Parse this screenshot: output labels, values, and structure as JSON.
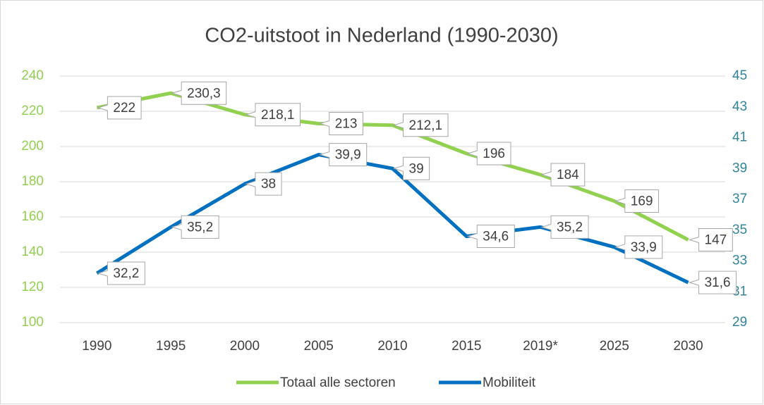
{
  "chart_data": {
    "type": "line",
    "title": "CO2-uitstoot in Nederland (1990-2030)",
    "categories": [
      "1990",
      "1995",
      "2000",
      "2005",
      "2010",
      "2015",
      "2019*",
      "2025",
      "2030"
    ],
    "series": [
      {
        "name": "Totaal alle sectoren",
        "color": "#92d050",
        "values": [
          222,
          230.3,
          218.1,
          213,
          212.1,
          196,
          184,
          169,
          147
        ],
        "value_labels": [
          "222",
          "230,3",
          "218,1",
          "213",
          "212,1",
          "196",
          "184",
          "169",
          "147"
        ]
      },
      {
        "name": "Mobiliteit",
        "color": "#0070c0",
        "axis": "y2",
        "values": [
          32.2,
          35.2,
          38,
          39.9,
          39,
          34.6,
          35.2,
          33.9,
          31.6
        ],
        "value_labels": [
          "32,2",
          "35,2",
          "38",
          "39,9",
          "39",
          "34,6",
          "35,2",
          "33,9",
          "31,6"
        ]
      }
    ],
    "ylim": [
      100,
      240
    ],
    "yticks": [
      100,
      120,
      140,
      160,
      180,
      200,
      220,
      240
    ],
    "y2lim": [
      29,
      45
    ],
    "y2ticks": [
      29,
      31,
      33,
      35,
      37,
      39,
      41,
      43,
      45
    ],
    "grid": true,
    "legend": "bottom"
  }
}
